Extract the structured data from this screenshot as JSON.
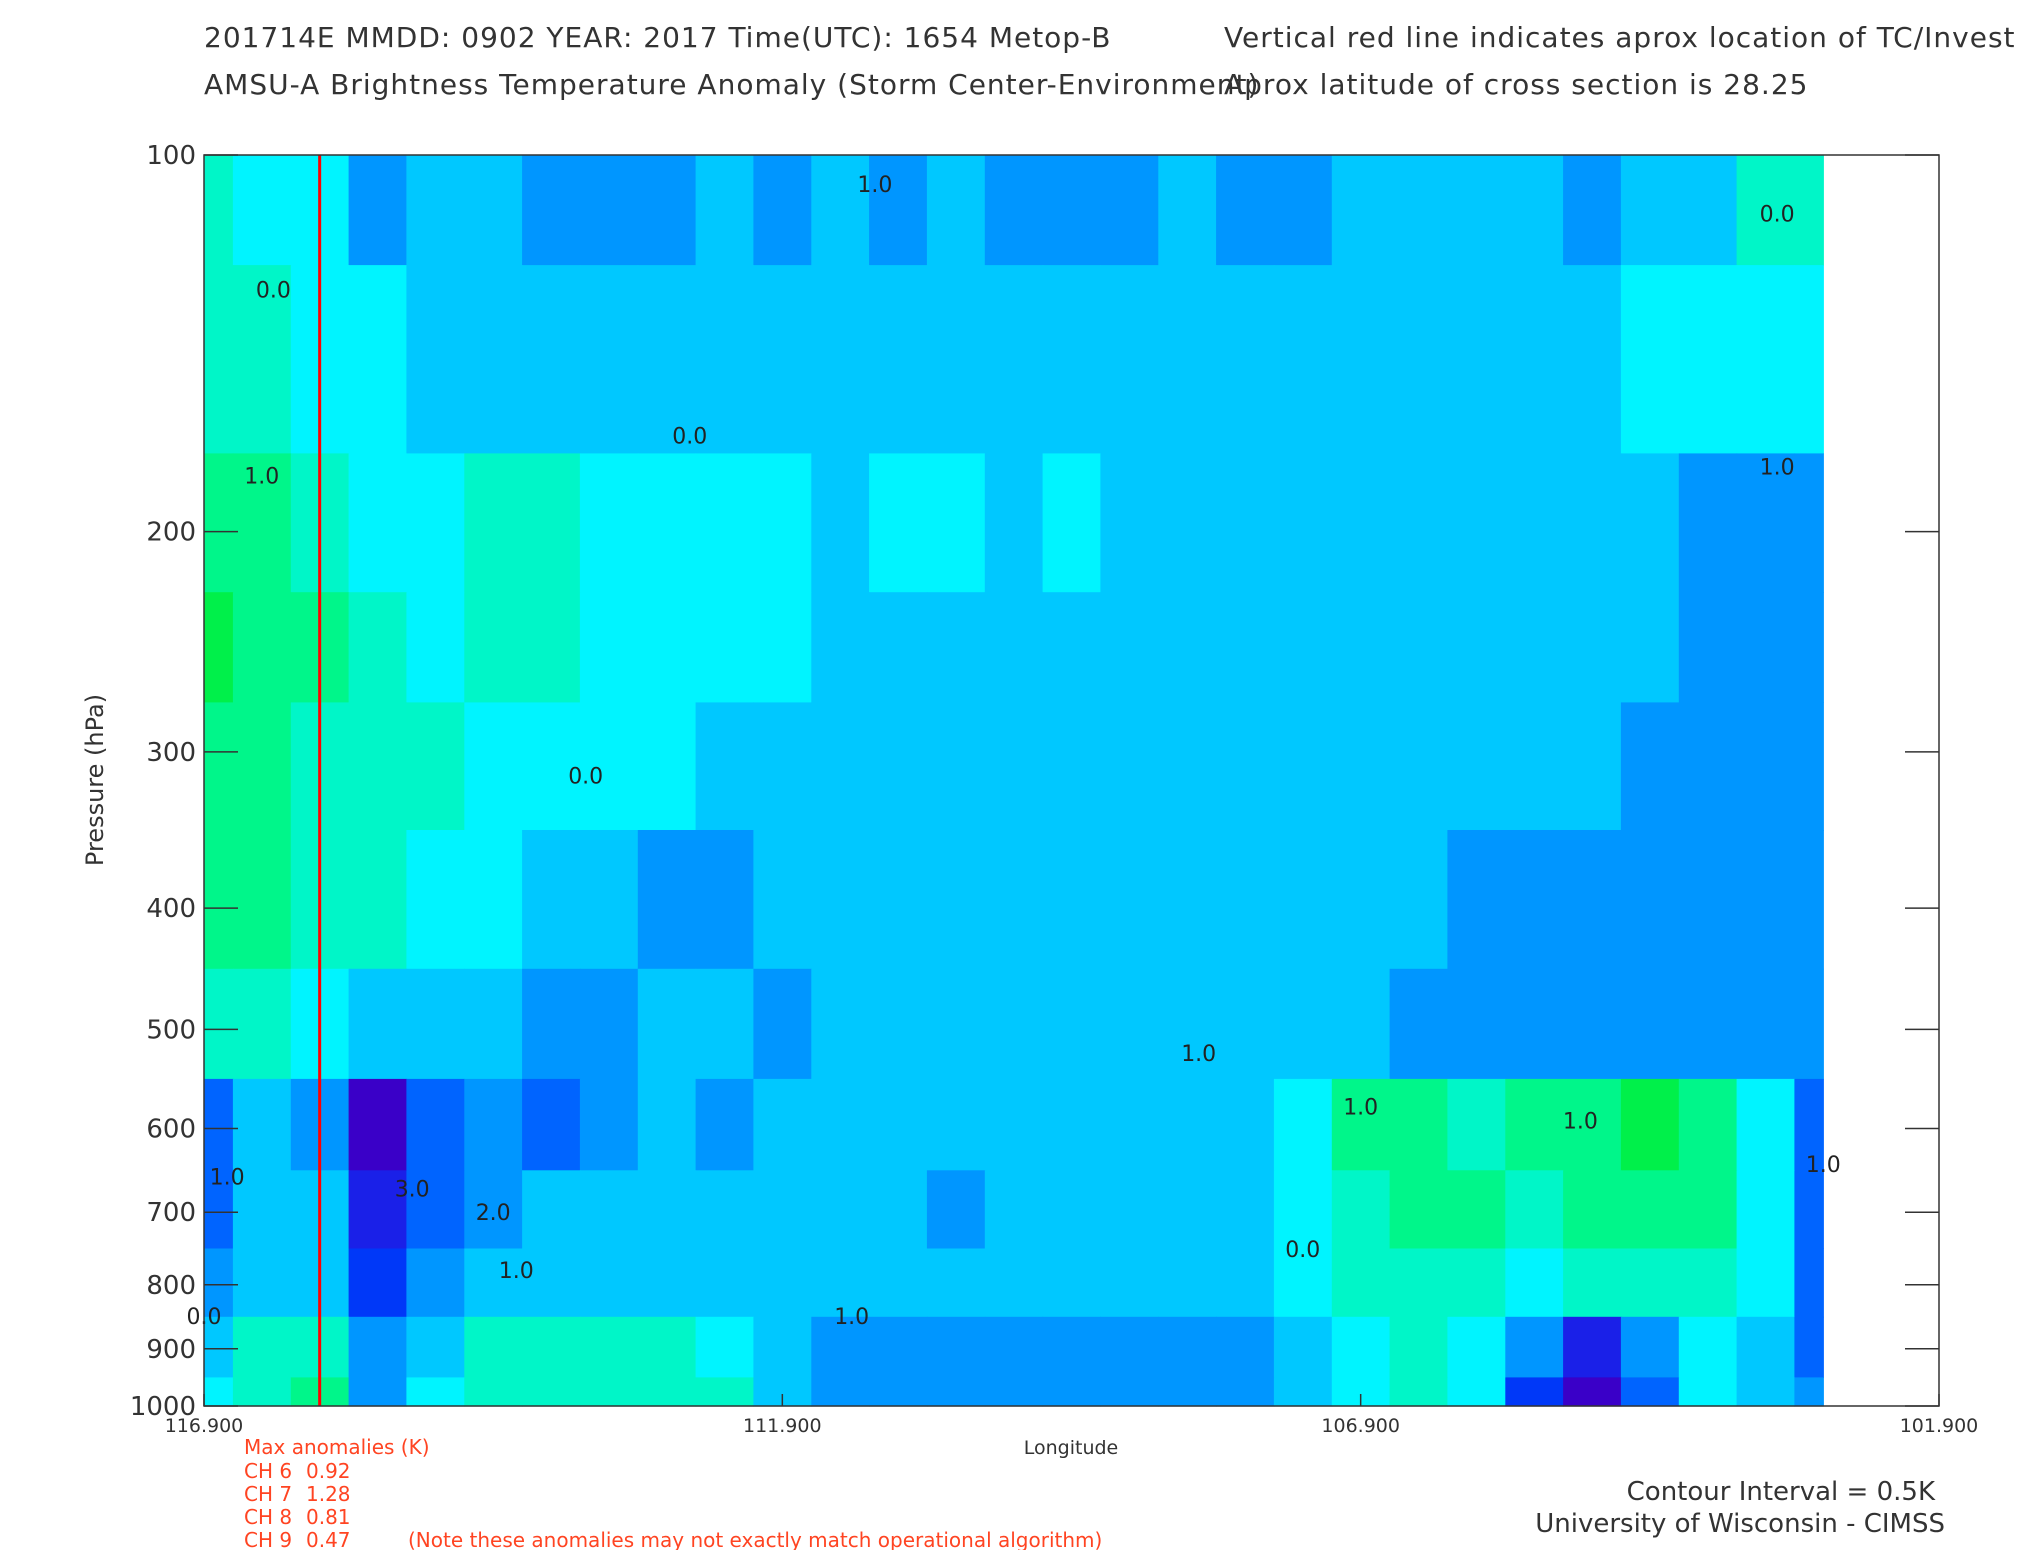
{
  "header": {
    "line1_left": "201714E  MMDD: 0902 YEAR: 2017 Time(UTC): 1654 Metop-B",
    "line2_left": "AMSU-A Brightness Temperature Anomaly (Storm Center-Environment)",
    "line1_right": "Vertical red line indicates aprox location of TC/Invest",
    "line2_right": "Aprox latitude of cross section is 28.25"
  },
  "chart_data": {
    "type": "heatmap",
    "subtype": "filled-contour cross section",
    "xlabel": "Longitude",
    "ylabel": "Pressure (hPa)",
    "x_ticks": [
      "116.900",
      "111.900",
      "106.900",
      "101.900"
    ],
    "x_tick_values": [
      116.9,
      111.9,
      106.9,
      101.9
    ],
    "xlim": [
      116.9,
      101.9
    ],
    "y_ticks": [
      "100",
      "200",
      "300",
      "400",
      "500",
      "600",
      "700",
      "800",
      "900",
      "1000"
    ],
    "y_tick_values": [
      100,
      200,
      300,
      400,
      500,
      600,
      700,
      800,
      900,
      1000
    ],
    "ylim": [
      100,
      1000
    ],
    "y_scale": "log",
    "y_inverted": true,
    "data_extent_lon": [
      116.9,
      102.9
    ],
    "storm_longitude": 115.9,
    "storm_line_color": "#ff0000",
    "contour_interval_K": 0.5,
    "color_levels": [
      {
        "value": -3.0,
        "color": "#3a00c8"
      },
      {
        "value": -2.5,
        "color": "#1a20e8"
      },
      {
        "value": -2.0,
        "color": "#0038f8"
      },
      {
        "value": -1.5,
        "color": "#0064ff"
      },
      {
        "value": -1.0,
        "color": "#0096ff"
      },
      {
        "value": -0.5,
        "color": "#00c8ff"
      },
      {
        "value": 0.0,
        "color": "#00f4ff"
      },
      {
        "value": 0.5,
        "color": "#00f6c8"
      },
      {
        "value": 1.0,
        "color": "#00f68a"
      },
      {
        "value": 1.5,
        "color": "#00f04a"
      }
    ],
    "longitudes": [
      116.9,
      116.4,
      115.9,
      115.4,
      114.9,
      114.4,
      113.9,
      113.4,
      112.9,
      112.4,
      111.9,
      111.4,
      110.9,
      110.4,
      109.9,
      109.4,
      108.9,
      108.4,
      107.9,
      107.4,
      106.9,
      106.4,
      105.9,
      105.4,
      104.9,
      104.4,
      103.9,
      103.4,
      102.9
    ],
    "pressures": [
      100,
      150,
      200,
      250,
      300,
      400,
      500,
      600,
      700,
      800,
      900,
      1000
    ],
    "values": [
      [
        0.4,
        0.2,
        -0.1,
        -0.8,
        -0.7,
        -0.7,
        -0.8,
        -0.8,
        -0.8,
        -0.7,
        -1.0,
        -0.6,
        -1.1,
        -0.7,
        -0.8,
        -0.8,
        -0.8,
        -0.6,
        -0.8,
        -0.8,
        -0.7,
        -0.5,
        -0.3,
        -0.4,
        -0.8,
        -0.7,
        -0.6,
        0.4,
        0.6
      ],
      [
        0.6,
        0.4,
        0.1,
        -0.2,
        -0.4,
        -0.4,
        -0.5,
        -0.6,
        -0.5,
        -0.5,
        -0.3,
        -0.6,
        -0.6,
        -0.6,
        -0.6,
        -0.6,
        -0.6,
        -0.6,
        -0.6,
        -0.6,
        -0.6,
        -0.6,
        -0.5,
        -0.5,
        -0.6,
        -0.2,
        -0.1,
        -0.1,
        -0.1
      ],
      [
        1.2,
        1.1,
        0.7,
        0.2,
        0.2,
        0.3,
        0.3,
        0.2,
        0.1,
        0.0,
        0.0,
        -0.3,
        -0.1,
        -0.2,
        -0.3,
        -0.2,
        -0.3,
        -0.3,
        -0.4,
        -0.4,
        -0.5,
        -0.4,
        -0.4,
        -0.3,
        -0.4,
        -0.6,
        -0.8,
        -1.1,
        -0.9
      ],
      [
        1.3,
        1.1,
        0.8,
        0.3,
        0.2,
        0.3,
        0.3,
        0.2,
        0.1,
        0.0,
        -0.1,
        -0.3,
        -0.3,
        -0.3,
        -0.4,
        -0.4,
        -0.5,
        -0.5,
        -0.5,
        -0.6,
        -0.5,
        -0.5,
        -0.3,
        -0.3,
        -0.5,
        -0.7,
        -0.9,
        -1.1,
        -1.0
      ],
      [
        1.2,
        1.0,
        0.7,
        0.4,
        0.3,
        0.2,
        0.1,
        0.0,
        -0.2,
        -0.3,
        -0.4,
        -0.6,
        -0.6,
        -0.6,
        -0.6,
        -0.6,
        -0.7,
        -0.6,
        -0.7,
        -0.7,
        -0.6,
        -0.5,
        -0.4,
        -0.5,
        -0.6,
        -0.9,
        -1.1,
        -1.2,
        -1.1
      ],
      [
        0.9,
        0.8,
        0.5,
        0.3,
        0.1,
        -0.1,
        -0.4,
        -0.6,
        -0.8,
        -0.8,
        -0.7,
        -0.7,
        -0.6,
        -0.5,
        -0.4,
        -0.4,
        -0.6,
        -0.7,
        -0.7,
        -0.6,
        -0.7,
        -0.7,
        -0.8,
        -0.8,
        -0.8,
        -0.9,
        -0.9,
        -0.9,
        -0.9
      ],
      [
        0.6,
        0.4,
        0.1,
        -0.6,
        -0.7,
        -0.6,
        -0.8,
        -0.8,
        -0.7,
        -0.7,
        -0.8,
        -0.6,
        -0.6,
        -0.6,
        -0.5,
        -0.4,
        -0.4,
        -0.5,
        -0.4,
        -0.6,
        -0.7,
        -0.9,
        -1.1,
        -1.1,
        -1.1,
        -1.0,
        -1.0,
        -1.0,
        -1.2
      ],
      [
        -1.7,
        -0.6,
        -0.9,
        -3.1,
        -1.4,
        -0.9,
        -1.3,
        -0.8,
        -0.7,
        -0.9,
        -0.6,
        -0.6,
        -0.5,
        -0.7,
        -0.6,
        -0.4,
        -0.5,
        -0.7,
        -0.6,
        0.1,
        0.9,
        1.1,
        0.7,
        1.1,
        0.9,
        1.3,
        1.2,
        0.1,
        -1.4
      ],
      [
        -1.4,
        -0.5,
        -0.7,
        -2.6,
        -1.4,
        -0.9,
        -0.6,
        -0.6,
        -0.6,
        -0.6,
        -0.5,
        -0.4,
        -0.6,
        -0.9,
        -0.5,
        -0.6,
        -0.5,
        -0.6,
        -0.6,
        0.0,
        0.7,
        0.9,
        0.8,
        0.6,
        0.8,
        0.9,
        1.1,
        0.0,
        -1.5
      ],
      [
        -0.8,
        -0.3,
        -0.5,
        -1.8,
        -1.0,
        -0.6,
        -0.4,
        -0.4,
        -0.3,
        -0.4,
        -0.6,
        -0.5,
        -0.6,
        -0.7,
        -0.5,
        -0.5,
        -0.6,
        -0.7,
        -0.5,
        0.0,
        0.5,
        0.6,
        0.4,
        0.2,
        0.5,
        0.5,
        0.6,
        -0.2,
        -1.4
      ],
      [
        -0.4,
        0.3,
        0.7,
        -0.9,
        -0.3,
        0.3,
        0.5,
        0.5,
        0.4,
        0.2,
        -0.5,
        -0.8,
        -0.9,
        -1.0,
        -0.9,
        -1.0,
        -1.0,
        -1.0,
        -0.8,
        -0.3,
        0.1,
        0.4,
        0.2,
        -1.2,
        -2.5,
        -0.9,
        -0.1,
        -0.6,
        -1.3
      ],
      [
        0.1,
        0.6,
        0.9,
        -0.8,
        0.1,
        0.6,
        0.6,
        0.6,
        0.6,
        0.4,
        -0.3,
        -0.9,
        -1.0,
        -1.1,
        -0.9,
        -1.2,
        -1.1,
        -1.1,
        -1.0,
        -0.4,
        0.2,
        0.5,
        0.2,
        -1.8,
        -3.2,
        -1.4,
        -0.2,
        -0.6,
        -1.2
      ]
    ]
  },
  "contour_labels": [
    {
      "text": "0.0",
      "lon": 116.3,
      "p": 130
    },
    {
      "text": "1.0",
      "lon": 116.4,
      "p": 183
    },
    {
      "text": "0.0",
      "lon": 113.6,
      "p": 318
    },
    {
      "text": "0.0",
      "lon": 112.7,
      "p": 170
    },
    {
      "text": "1.0",
      "lon": 111.1,
      "p": 107
    },
    {
      "text": "0.0",
      "lon": 103.3,
      "p": 113
    },
    {
      "text": "1.0",
      "lon": 103.3,
      "p": 180
    },
    {
      "text": "1.0",
      "lon": 108.3,
      "p": 530
    },
    {
      "text": "1.0",
      "lon": 106.9,
      "p": 585
    },
    {
      "text": "1.0",
      "lon": 105.0,
      "p": 600
    },
    {
      "text": "1.0",
      "lon": 102.9,
      "p": 650
    },
    {
      "text": "0.0",
      "lon": 107.4,
      "p": 760
    },
    {
      "text": "1.0",
      "lon": 111.3,
      "p": 860
    },
    {
      "text": "2.0",
      "lon": 114.4,
      "p": 710
    },
    {
      "text": "3.0",
      "lon": 115.1,
      "p": 680
    },
    {
      "text": "1.0",
      "lon": 114.2,
      "p": 790
    },
    {
      "text": "1.0",
      "lon": 116.7,
      "p": 665
    },
    {
      "text": "0.0",
      "lon": 116.9,
      "p": 860
    }
  ],
  "anomalies": {
    "title": "Max anomalies (K)",
    "rows": [
      {
        "channel": "CH 6",
        "value": "0.92"
      },
      {
        "channel": "CH 7",
        "value": "1.28"
      },
      {
        "channel": "CH 8",
        "value": "0.81"
      },
      {
        "channel": "CH 9",
        "value": "0.47"
      }
    ],
    "note": "(Note these anomalies may not exactly match operational algorithm)"
  },
  "footer": {
    "contour_interval": "Contour Interval = 0.5K",
    "credit": "University of Wisconsin - CIMSS"
  }
}
